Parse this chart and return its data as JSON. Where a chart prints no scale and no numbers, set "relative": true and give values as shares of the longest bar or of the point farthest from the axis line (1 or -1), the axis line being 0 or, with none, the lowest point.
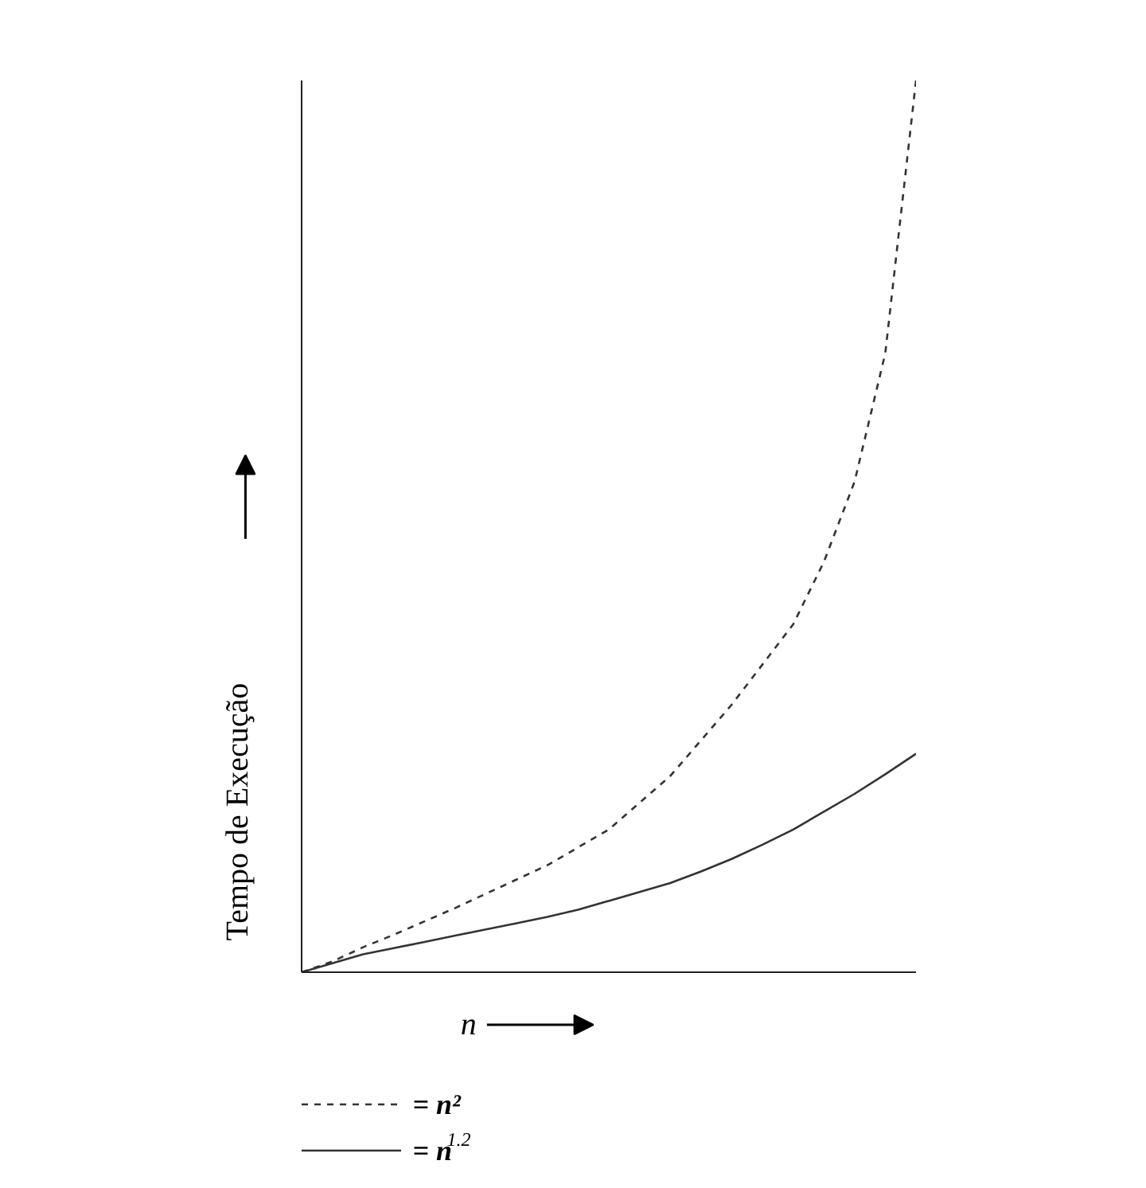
{
  "chart_data": {
    "type": "line",
    "xlabel": "n",
    "ylabel": "Tempo de Execução",
    "relative": true,
    "legend": "bottom",
    "grid": false,
    "categories": [
      null,
      null,
      null,
      null,
      null,
      null,
      null,
      null,
      null,
      null,
      null,
      null,
      null,
      null,
      null,
      null,
      null,
      null,
      null,
      null,
      null
    ],
    "series": [
      {
        "name": "= n²",
        "color": "#333333",
        "line_style": "dashed",
        "values": [
          0,
          0.012,
          0.028,
          0.042,
          0.057,
          0.072,
          0.088,
          0.104,
          0.12,
          0.14,
          0.16,
          0.19,
          0.22,
          0.26,
          0.3,
          0.345,
          0.39,
          0.46,
          0.55,
          0.694,
          1.0
        ]
      },
      {
        "name": "= n$^{1.2}$",
        "color": "#333333",
        "line_style": "solid",
        "values": [
          0,
          0.01,
          0.02,
          0.027,
          0.034,
          0.041,
          0.048,
          0.055,
          0.062,
          0.07,
          0.08,
          0.09,
          0.1,
          0.113,
          0.127,
          0.143,
          0.16,
          0.18,
          0.2,
          0.222,
          0.245
        ]
      }
    ]
  }
}
